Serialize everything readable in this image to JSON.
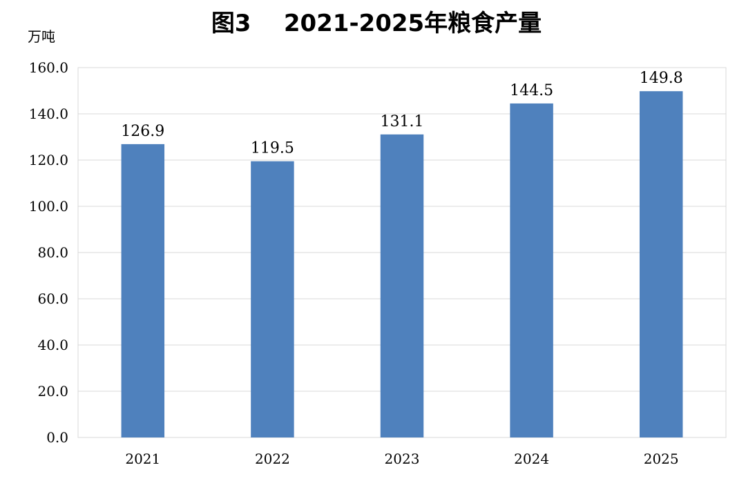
{
  "chart_data": {
    "type": "bar",
    "title": "图3    2021-2025年粮食产量",
    "ylabel": "万吨",
    "xlabel": "",
    "categories": [
      "2021",
      "2022",
      "2023",
      "2024",
      "2025"
    ],
    "values": [
      126.9,
      119.5,
      131.1,
      144.5,
      149.8
    ],
    "data_labels": [
      "126.9",
      "119.5",
      "131.1",
      "144.5",
      "149.8"
    ],
    "ylim": [
      0,
      160
    ],
    "yticks": [
      "0.0",
      "20.0",
      "40.0",
      "60.0",
      "80.0",
      "100.0",
      "120.0",
      "140.0",
      "160.0"
    ],
    "grid": true,
    "legend": "none",
    "bar_color": "#4f81bd"
  }
}
